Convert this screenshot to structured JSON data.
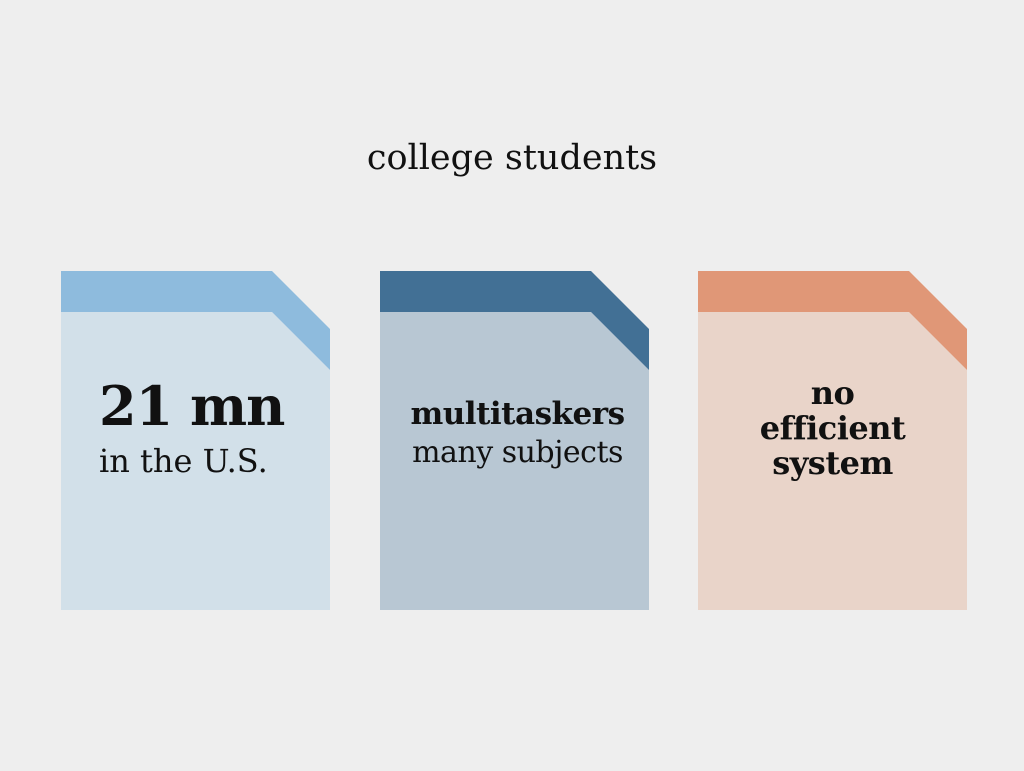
{
  "title": "college students",
  "cards": [
    {
      "headline": "21 mn",
      "subline": "in the U.S.",
      "colors": {
        "tab": "#8ebbdd",
        "body": "#d2e0e9"
      }
    },
    {
      "headline": "multitaskers",
      "subline": "many subjects",
      "colors": {
        "tab": "#427095",
        "body": "#b8c7d3"
      }
    },
    {
      "lines": [
        "no",
        "efficient",
        "system"
      ],
      "colors": {
        "tab": "#e09777",
        "body": "#e9d4c9"
      }
    }
  ]
}
